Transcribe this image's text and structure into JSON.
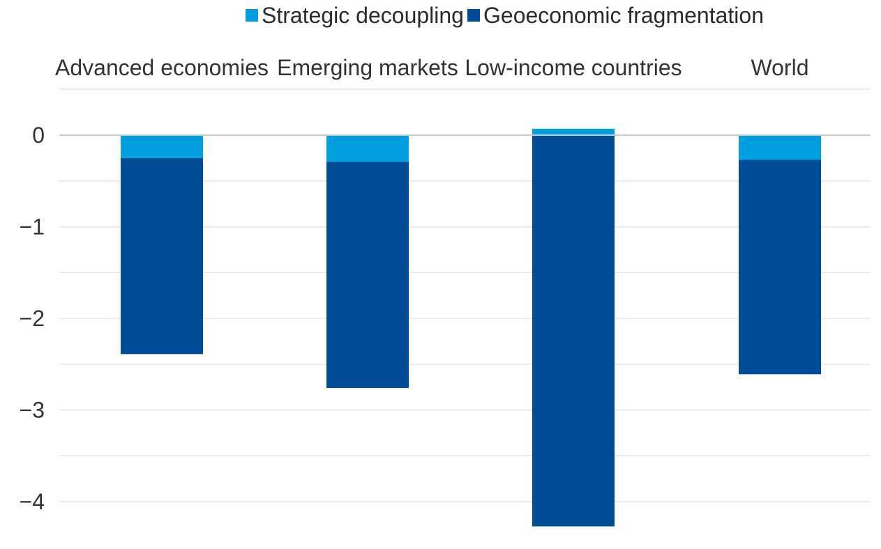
{
  "chart_data": {
    "type": "bar",
    "stacked": true,
    "categories": [
      "Advanced economies",
      "Emerging markets",
      "Low-income countries",
      "World"
    ],
    "series": [
      {
        "name": "Strategic decoupling",
        "color": "#009fdf",
        "values": [
          -0.25,
          -0.29,
          0.07,
          -0.27
        ]
      },
      {
        "name": "Geoeconomic fragmentation",
        "color": "#004c97",
        "values": [
          -2.14,
          -2.47,
          -4.27,
          -2.34
        ]
      }
    ],
    "ylim": [
      -4.3,
      0.5
    ],
    "yticks": [
      0,
      -1,
      -2,
      -3,
      -4
    ],
    "ytick_labels": [
      "0",
      "−1",
      "−2",
      "−3",
      "−4"
    ],
    "grid": true,
    "legend_position": "top",
    "category_label_position": "top",
    "title": "",
    "xlabel": "",
    "ylabel": ""
  }
}
